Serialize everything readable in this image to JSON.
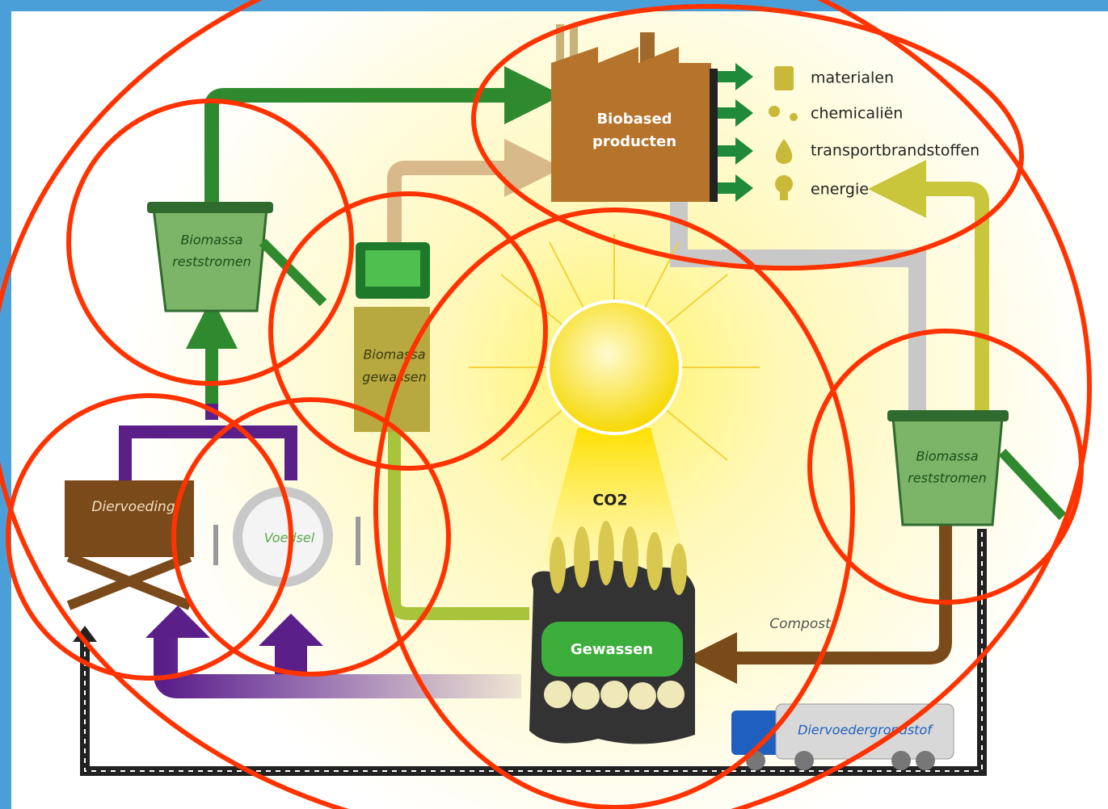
{
  "factory": {
    "lines": [
      "Biobased",
      "producten"
    ]
  },
  "outputs": [
    "materialen",
    "chemicaliën",
    "transportbrandstoffen",
    "energie"
  ],
  "bin_left": {
    "lines": [
      "Biomassa",
      "reststromen"
    ]
  },
  "bin_right": {
    "lines": [
      "Biomassa",
      "reststromen"
    ]
  },
  "crops_box": {
    "lines": [
      "Biomassa",
      "gewassen"
    ]
  },
  "feed": "Diervoeding",
  "food": "Voedsel",
  "co2": "CO2",
  "crops": "Gewassen",
  "compost": "Compost",
  "truck": "Diervoedergrondstof"
}
